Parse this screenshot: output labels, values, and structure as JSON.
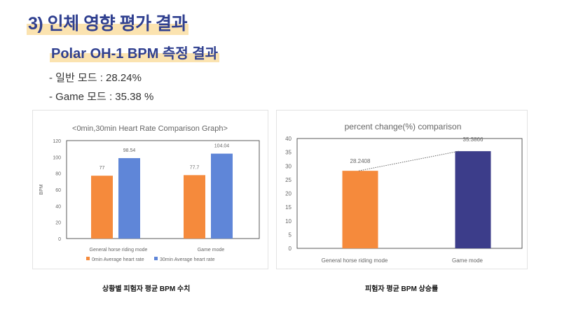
{
  "heading": "3) 인체 영향 평가 결과",
  "subheading": "Polar OH-1 BPM 측정 결과",
  "bullets": [
    "- 일반 모드 : 28.24%",
    "- Game 모드 : 35.38 %"
  ],
  "captions": [
    "상황별 피험자 평균 BPM 수치",
    "피험자 평균 BPM 상승률"
  ],
  "chart_data": [
    {
      "type": "bar",
      "title": "<0min,30min Heart Rate Comparison Graph>",
      "xlabel": "",
      "ylabel": "BPM",
      "categories": [
        "General horse riding mode",
        "Game mode"
      ],
      "ylim": [
        0,
        120
      ],
      "yticks": [
        0,
        20,
        40,
        60,
        80,
        100,
        120
      ],
      "series": [
        {
          "name": "0min Average heart rate",
          "values": [
            77,
            77.7
          ],
          "labels": [
            "77",
            "77.7"
          ],
          "color": "#f58a3c"
        },
        {
          "name": "30min Average heart rate",
          "values": [
            98.54,
            104.04
          ],
          "labels": [
            "98.54",
            "104.04"
          ],
          "color": "#5f86d8"
        }
      ],
      "legend": "bottom"
    },
    {
      "type": "bar",
      "title": "percent change(%) comparison",
      "xlabel": "",
      "ylabel": "",
      "categories": [
        "General horse riding mode",
        "Game mode"
      ],
      "ylim": [
        0,
        40
      ],
      "yticks": [
        0,
        5,
        10,
        15,
        20,
        25,
        30,
        35,
        40
      ],
      "values": [
        28.2408,
        35.3866
      ],
      "labels": [
        "28.2408",
        "35.3866"
      ],
      "colors": [
        "#f58a3c",
        "#3c3d8a"
      ],
      "trendline": "dotted"
    }
  ]
}
